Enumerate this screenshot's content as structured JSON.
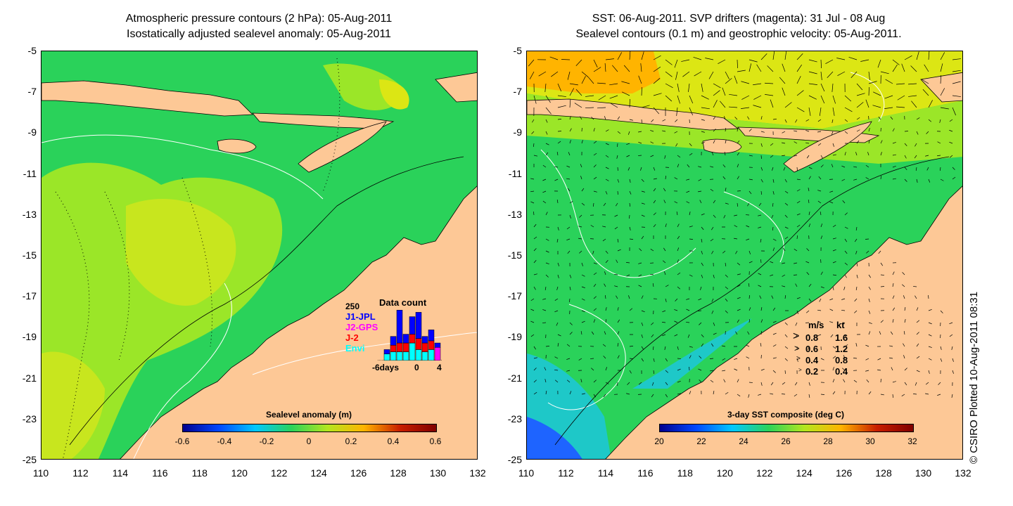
{
  "left_panel": {
    "title_line1": "Atmospheric pressure contours (2 hPa): 05-Aug-2011",
    "title_line2": "Isostatically adjusted sealevel anomaly: 05-Aug-2011",
    "colorbar": {
      "title": "Sealevel anomaly (m)",
      "ticks": [
        "-0.6",
        "-0.4",
        "-0.2",
        "0",
        "0.2",
        "0.4",
        "0.6"
      ],
      "colors": [
        "#00008f",
        "#0047ff",
        "#00c8ff",
        "#2ad25a",
        "#b4e61e",
        "#ffb400",
        "#c81e00",
        "#800000"
      ]
    },
    "data_count": {
      "title": "Data count",
      "ymax_label": "250",
      "sources": [
        {
          "name": "J1-JPL",
          "color": "#0000ff"
        },
        {
          "name": "J2-GPS",
          "color": "#ff00ff"
        },
        {
          "name": "J-2",
          "color": "#ff0000"
        },
        {
          "name": "Envi",
          "color": "#00ffff"
        }
      ],
      "x_labels": [
        "-6days",
        "0",
        "4"
      ],
      "days": [
        {
          "day": -6,
          "j1jpl": 0,
          "j2gps": 0,
          "j2": 0,
          "envi": 0
        },
        {
          "day": -5,
          "j1jpl": 20,
          "j2gps": 0,
          "j2": 0,
          "envi": 30
        },
        {
          "day": -4,
          "j1jpl": 40,
          "j2gps": 0,
          "j2": 30,
          "envi": 40
        },
        {
          "day": -3,
          "j1jpl": 150,
          "j2gps": 0,
          "j2": 40,
          "envi": 40
        },
        {
          "day": -2,
          "j1jpl": 40,
          "j2gps": 0,
          "j2": 40,
          "envi": 40
        },
        {
          "day": -1,
          "j1jpl": 80,
          "j2gps": 0,
          "j2": 40,
          "envi": 80
        },
        {
          "day": 0,
          "j1jpl": 120,
          "j2gps": 0,
          "j2": 50,
          "envi": 50
        },
        {
          "day": 1,
          "j1jpl": 30,
          "j2gps": 0,
          "j2": 40,
          "envi": 40
        },
        {
          "day": 2,
          "j1jpl": 50,
          "j2gps": 0,
          "j2": 40,
          "envi": 50
        },
        {
          "day": 3,
          "j1jpl": 20,
          "j2gps": 60,
          "j2": 0,
          "envi": 0
        }
      ]
    }
  },
  "right_panel": {
    "title_line1": "SST: 06-Aug-2011. SVP drifters (magenta): 31 Jul - 08 Aug",
    "title_line2": "Sealevel contours (0.1 m) and geostrophic velocity: 05-Aug-2011.",
    "colorbar": {
      "title": "3-day SST composite (deg C)",
      "ticks": [
        "20",
        "22",
        "24",
        "26",
        "28",
        "30",
        "32"
      ],
      "colors": [
        "#00008f",
        "#0047ff",
        "#00c8ff",
        "#2ad25a",
        "#b4e61e",
        "#ffb400",
        "#c81e00",
        "#800000"
      ]
    },
    "speed_legend": {
      "header_ms": "m/s",
      "header_kt": "kt",
      "rows": [
        {
          "ms": "0.8",
          "kt": "1.6"
        },
        {
          "ms": "0.6",
          "kt": "1.2"
        },
        {
          "ms": "0.4",
          "kt": "0.8"
        },
        {
          "ms": "0.2",
          "kt": "0.4"
        }
      ]
    }
  },
  "axes": {
    "lat_ticks": [
      "-5",
      "-7",
      "-9",
      "-11",
      "-13",
      "-15",
      "-17",
      "-19",
      "-21",
      "-23",
      "-25"
    ],
    "lon_ticks": [
      "110",
      "112",
      "114",
      "116",
      "118",
      "120",
      "122",
      "124",
      "126",
      "128",
      "130",
      "132"
    ]
  },
  "colors": {
    "land": "#fdc896",
    "ocean_green": "#2ad25a",
    "ocean_yellowgreen": "#9be628",
    "ocean_yellow": "#dce614",
    "sst_cyan": "#1ec8c8",
    "sst_blue": "#1e64ff"
  },
  "credit": "© CSIRO Plotted 10-Aug-2011 08:31"
}
